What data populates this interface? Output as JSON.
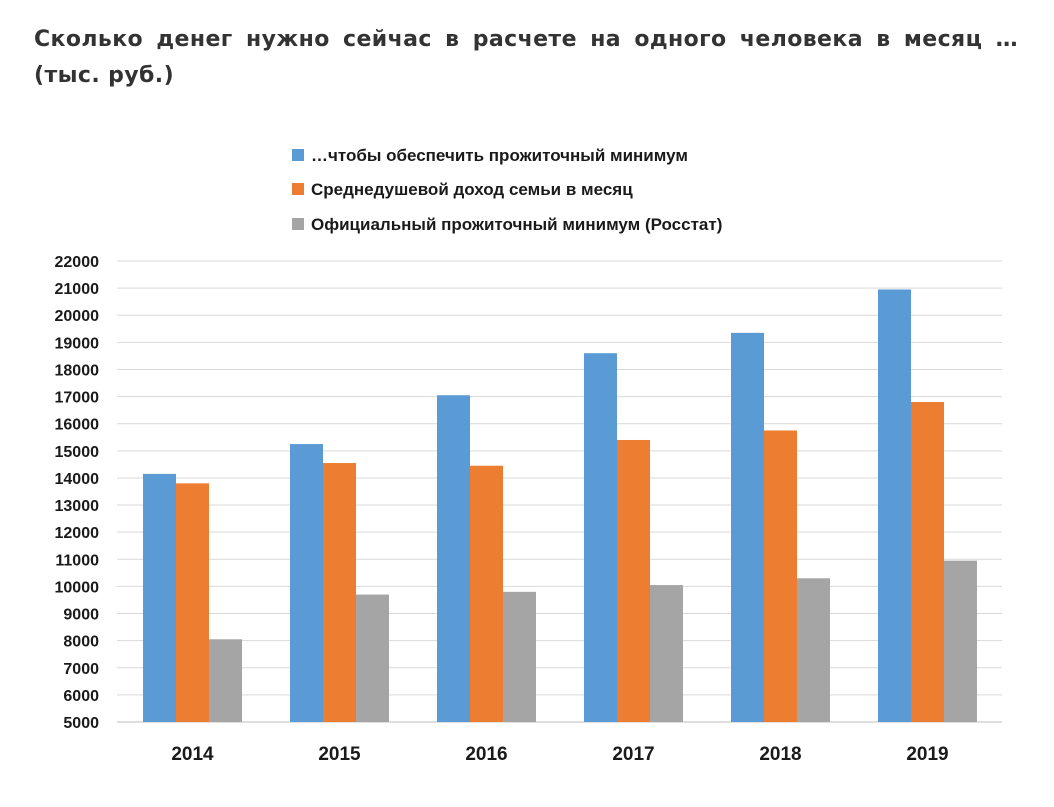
{
  "page": {
    "title": "Сколько денег нужно сейчас в расчете на одного человека в месяц … (тыс. руб.)"
  },
  "chart_data": {
    "type": "bar",
    "categories": [
      "2014",
      "2015",
      "2016",
      "2017",
      "2018",
      "2019"
    ],
    "series": [
      {
        "name": "…чтобы обеспечить прожиточный минимум",
        "color": "#5b9bd5",
        "values": [
          14150,
          15250,
          17050,
          18600,
          19350,
          20950
        ]
      },
      {
        "name": "Среднедушевой доход семьи в месяц",
        "color": "#ed7d31",
        "values": [
          13800,
          14550,
          14450,
          15400,
          15750,
          16800
        ]
      },
      {
        "name": "Официальный прожиточный минимум (Росстат)",
        "color": "#a5a5a5",
        "values": [
          8050,
          9700,
          9800,
          10050,
          10300,
          10950
        ]
      }
    ],
    "yticks": [
      "5000",
      "6000",
      "7000",
      "8000",
      "9000",
      "10000",
      "11000",
      "12000",
      "13000",
      "14000",
      "15000",
      "16000",
      "17000",
      "18000",
      "19000",
      "20000",
      "21000",
      "22000"
    ],
    "ylim": [
      5000,
      22000
    ],
    "grid": true,
    "legend_position": "top"
  }
}
